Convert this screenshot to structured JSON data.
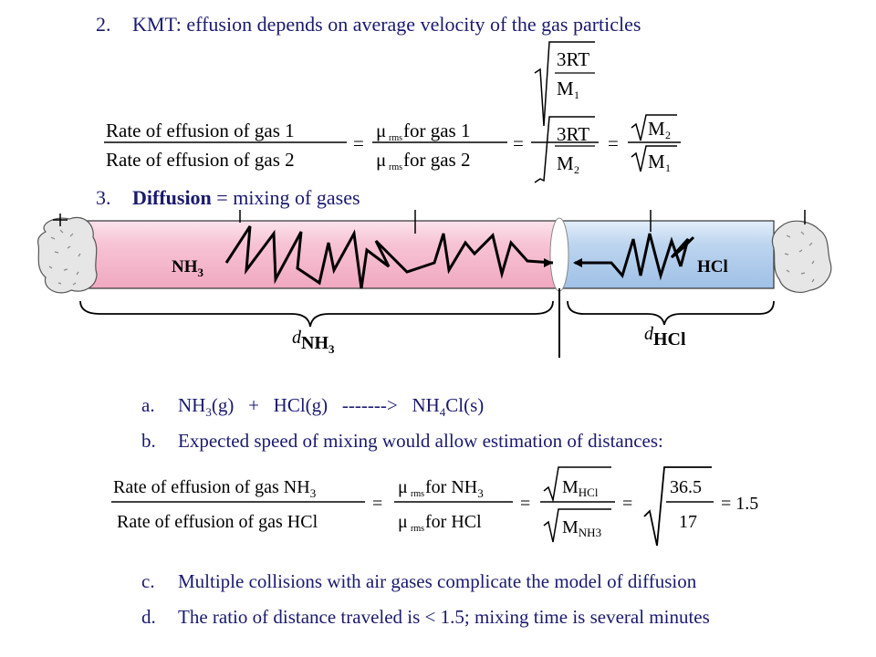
{
  "items": {
    "i2": {
      "num": "2.",
      "text": "KMT: effusion depends on average velocity of the gas particles"
    },
    "i3": {
      "num": "3.",
      "bold": "Diffusion",
      "rest": " = mixing of gases"
    }
  },
  "eq1": {
    "lhs_num": "Rate of effusion of gas 1",
    "lhs_den": "Rate of effusion of gas 2",
    "mu": "μ",
    "rms": "rms",
    "mid_num": " for gas 1",
    "mid_den": " for gas 2",
    "eq": "=",
    "r3_num": "3RT",
    "m1_letter": "M",
    "m1_sub": "1",
    "m2_letter": "M",
    "m2_sub": "2",
    "r4_num_letter": "M",
    "r4_num_sub": "2",
    "r4_den_letter": "M",
    "r4_den_sub": "1"
  },
  "tube": {
    "nh3_main": "NH",
    "nh3_sub": "3",
    "hcl": "HCl",
    "d_letter": "d",
    "d_nh3_main": "NH",
    "d_nh3_sub": "3",
    "d_hcl": "HCl"
  },
  "sub_items": {
    "a": {
      "letter": "a.",
      "p1": "NH",
      "s1": "3",
      "p2": "(g)   +   HCl(g)   -------&gt;   NH",
      "s2": "4",
      "p3": "Cl(s)"
    },
    "b": {
      "letter": "b.",
      "text": "Expected speed of mixing would allow estimation of distances:"
    },
    "c": {
      "letter": "c.",
      "text": "Multiple collisions with air gases complicate the model of diffusion"
    },
    "d": {
      "letter": "d.",
      "text": "The ratio of distance traveled is < 1.5; mixing time is several minutes"
    }
  },
  "eq2": {
    "lhs_num": "Rate of effusion of gas NH",
    "lhs_num_sub": "3",
    "lhs_den": "Rate of effusion of gas HCl",
    "mu": "μ",
    "rms": "rms",
    "mid_num": " for NH",
    "mid_num_sub": "3",
    "mid_den": " for HCl",
    "eq": "=",
    "m_letter": "M",
    "m_hcl": "HCl",
    "m_nh3": "NH3",
    "n365": "36.5",
    "n17": "17",
    "result": "= 1.5"
  },
  "colors": {
    "navy": "#1a1a6e",
    "pink": "#f6bfd0",
    "blue": "#b9d3ee"
  }
}
